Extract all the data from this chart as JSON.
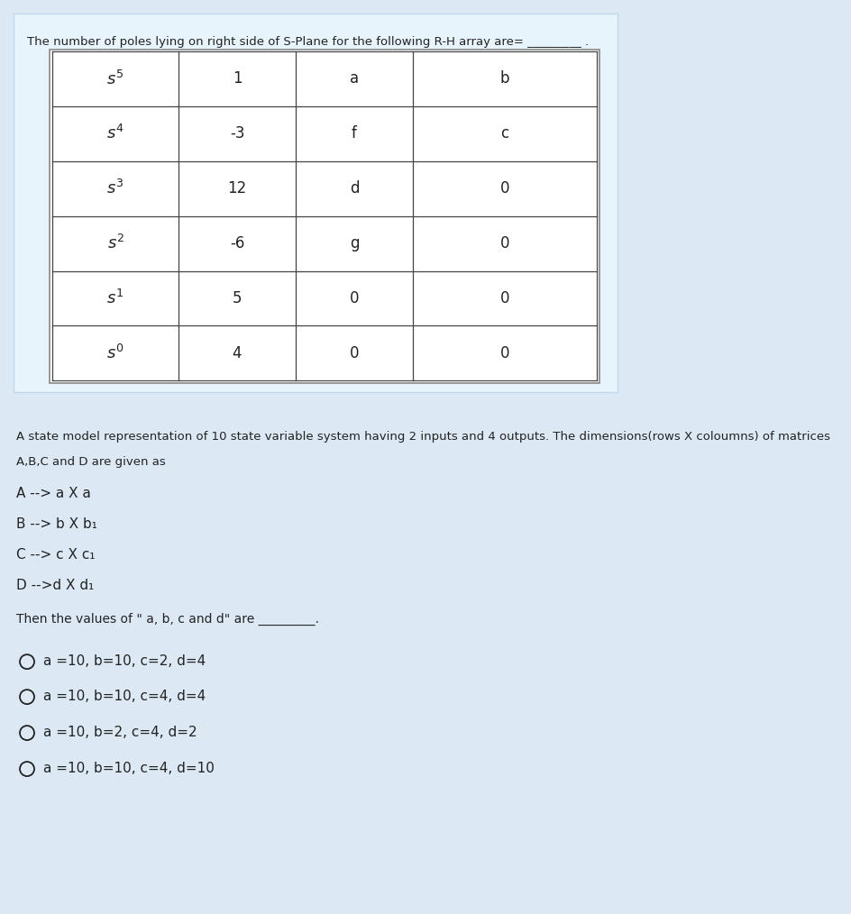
{
  "fig_width": 9.45,
  "fig_height": 10.14,
  "dpi": 100,
  "bg_light_blue": "#dce9f5",
  "bg_white_panel": "#ffffff",
  "black_panel": "#000000",
  "table_bg": "#ffffff",
  "table_border": "#444444",
  "text_dark": "#222222",
  "text_blue_label": "#1a4f72",
  "question1": "The number of poles lying on right side of S-Plane for the following R-H array are= _________ .",
  "table_rows": [
    [
      "S⁵",
      "1",
      "a",
      "b"
    ],
    [
      "S⁴",
      "-3",
      "f",
      "c"
    ],
    [
      "S³",
      "12",
      "d",
      "0"
    ],
    [
      "S²",
      "-6",
      "g",
      "0"
    ],
    [
      "S¹",
      "5",
      "0",
      "0"
    ],
    [
      "S⁰",
      "4",
      "0",
      "0"
    ]
  ],
  "table_row_labels_math": [
    "$s^5$",
    "$s^4$",
    "$s^3$",
    "$s^2$",
    "$s^1$",
    "$s^0$"
  ],
  "table_data": [
    [
      "1",
      "a",
      "b"
    ],
    [
      "-3",
      "f",
      "c"
    ],
    [
      "12",
      "d",
      "0"
    ],
    [
      "-6",
      "g",
      "0"
    ],
    [
      "5",
      "0",
      "0"
    ],
    [
      "4",
      "0",
      "0"
    ]
  ],
  "q2_line1": "A state model representation of 10 state variable system having 2 inputs and 4 outputs. The dimensions(rows X coloumns) of matrices",
  "q2_line2": "A,B,C and D are given as",
  "matrix_A": "A --> a X a",
  "matrix_B": "B --> b X b₁",
  "matrix_C": "C --> c X c₁",
  "matrix_D": "D -->d X d₁",
  "fill_blank": "Then the values of \" a, b, c and d\" are _________.",
  "options": [
    "a =10, b=10, c=2, d=4",
    "a =10, b=10, c=4, d=4",
    "a =10, b=2, c=4, d=2",
    "a =10, b=10, c=4, d=10"
  ]
}
